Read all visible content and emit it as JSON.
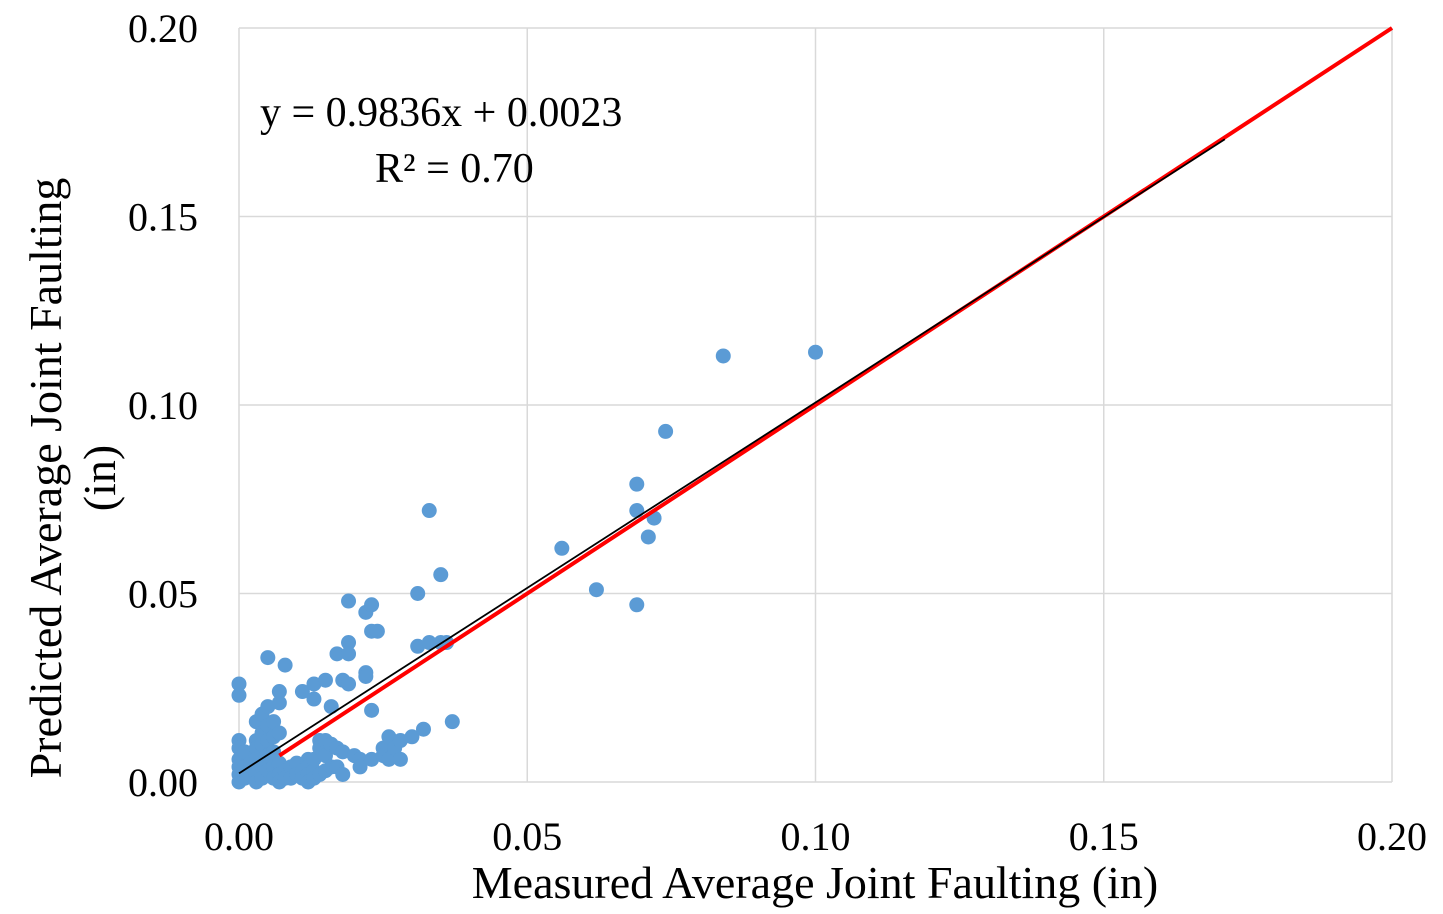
{
  "chart_data": {
    "type": "scatter",
    "xlabel": "Measured Average Joint Faulting (in)",
    "ylabel_lines": [
      "Predicted Average Joint Faulting",
      "(in)"
    ],
    "xlim": [
      0,
      0.2
    ],
    "ylim": [
      0,
      0.2
    ],
    "x_ticks": [
      0,
      0.05,
      0.1,
      0.15,
      0.2
    ],
    "y_ticks": [
      0,
      0.05,
      0.1,
      0.15,
      0.2
    ],
    "x_tick_labels": [
      "0.00",
      "0.05",
      "0.10",
      "0.15",
      "0.20"
    ],
    "y_tick_labels": [
      "0.00",
      "0.05",
      "0.10",
      "0.15",
      "0.20"
    ],
    "grid": true,
    "legend": "none",
    "equation_text": "y = 0.9836x + 0.0023",
    "r2_text": "R² = 0.70",
    "trendline": {
      "slope": 0.9836,
      "intercept": 0.0023,
      "x_range": [
        0,
        0.171
      ],
      "color": "#000000"
    },
    "equality_line": {
      "x_range": [
        0.007,
        0.2
      ],
      "color": "#ff0000"
    },
    "point_color": "#5b9bd5",
    "points": [
      [
        0.0,
        0.026
      ],
      [
        0.0,
        0.023
      ],
      [
        0.0,
        0.011
      ],
      [
        0.0,
        0.009
      ],
      [
        0.0,
        0.006
      ],
      [
        0.0,
        0.004
      ],
      [
        0.0,
        0.002
      ],
      [
        0.0,
        0.0
      ],
      [
        0.001,
        0.008
      ],
      [
        0.001,
        0.004
      ],
      [
        0.001,
        0.001
      ],
      [
        0.002,
        0.005
      ],
      [
        0.002,
        0.002
      ],
      [
        0.003,
        0.011
      ],
      [
        0.003,
        0.009
      ],
      [
        0.003,
        0.006
      ],
      [
        0.003,
        0.002
      ],
      [
        0.003,
        0.0
      ],
      [
        0.003,
        0.016
      ],
      [
        0.004,
        0.018
      ],
      [
        0.004,
        0.013
      ],
      [
        0.004,
        0.01
      ],
      [
        0.004,
        0.004
      ],
      [
        0.004,
        0.001
      ],
      [
        0.005,
        0.02
      ],
      [
        0.005,
        0.015
      ],
      [
        0.005,
        0.011
      ],
      [
        0.005,
        0.033
      ],
      [
        0.005,
        0.007
      ],
      [
        0.005,
        0.003
      ],
      [
        0.006,
        0.016
      ],
      [
        0.006,
        0.012
      ],
      [
        0.006,
        0.008
      ],
      [
        0.006,
        0.004
      ],
      [
        0.006,
        0.001
      ],
      [
        0.007,
        0.021
      ],
      [
        0.007,
        0.013
      ],
      [
        0.007,
        0.005
      ],
      [
        0.007,
        0.002
      ],
      [
        0.007,
        0.0
      ],
      [
        0.007,
        0.024
      ],
      [
        0.008,
        0.003
      ],
      [
        0.008,
        0.001
      ],
      [
        0.008,
        0.031
      ],
      [
        0.009,
        0.004
      ],
      [
        0.009,
        0.001
      ],
      [
        0.01,
        0.005
      ],
      [
        0.01,
        0.002
      ],
      [
        0.011,
        0.024
      ],
      [
        0.011,
        0.003
      ],
      [
        0.011,
        0.001
      ],
      [
        0.012,
        0.006
      ],
      [
        0.012,
        0.004
      ],
      [
        0.012,
        0.002
      ],
      [
        0.012,
        0.0
      ],
      [
        0.013,
        0.006
      ],
      [
        0.013,
        0.003
      ],
      [
        0.013,
        0.001
      ],
      [
        0.013,
        0.026
      ],
      [
        0.013,
        0.022
      ],
      [
        0.014,
        0.011
      ],
      [
        0.014,
        0.002
      ],
      [
        0.014,
        0.009
      ],
      [
        0.015,
        0.027
      ],
      [
        0.015,
        0.011
      ],
      [
        0.015,
        0.007
      ],
      [
        0.015,
        0.003
      ],
      [
        0.016,
        0.02
      ],
      [
        0.016,
        0.01
      ],
      [
        0.016,
        0.004
      ],
      [
        0.017,
        0.034
      ],
      [
        0.017,
        0.009
      ],
      [
        0.017,
        0.004
      ],
      [
        0.018,
        0.027
      ],
      [
        0.018,
        0.008
      ],
      [
        0.018,
        0.002
      ],
      [
        0.019,
        0.037
      ],
      [
        0.019,
        0.034
      ],
      [
        0.019,
        0.048
      ],
      [
        0.019,
        0.026
      ],
      [
        0.02,
        0.007
      ],
      [
        0.021,
        0.006
      ],
      [
        0.021,
        0.004
      ],
      [
        0.022,
        0.045
      ],
      [
        0.022,
        0.029
      ],
      [
        0.022,
        0.028
      ],
      [
        0.023,
        0.047
      ],
      [
        0.023,
        0.04
      ],
      [
        0.023,
        0.019
      ],
      [
        0.023,
        0.006
      ],
      [
        0.024,
        0.04
      ],
      [
        0.025,
        0.009
      ],
      [
        0.025,
        0.007
      ],
      [
        0.026,
        0.01
      ],
      [
        0.026,
        0.006
      ],
      [
        0.026,
        0.012
      ],
      [
        0.027,
        0.009
      ],
      [
        0.028,
        0.006
      ],
      [
        0.028,
        0.011
      ],
      [
        0.03,
        0.012
      ],
      [
        0.031,
        0.05
      ],
      [
        0.031,
        0.036
      ],
      [
        0.032,
        0.014
      ],
      [
        0.033,
        0.072
      ],
      [
        0.033,
        0.037
      ],
      [
        0.035,
        0.037
      ],
      [
        0.035,
        0.055
      ],
      [
        0.036,
        0.037
      ],
      [
        0.037,
        0.016
      ],
      [
        0.056,
        0.062
      ],
      [
        0.062,
        0.051
      ],
      [
        0.069,
        0.072
      ],
      [
        0.069,
        0.079
      ],
      [
        0.069,
        0.047
      ],
      [
        0.071,
        0.065
      ],
      [
        0.072,
        0.07
      ],
      [
        0.074,
        0.093
      ],
      [
        0.084,
        0.113
      ],
      [
        0.1,
        0.114
      ]
    ]
  }
}
